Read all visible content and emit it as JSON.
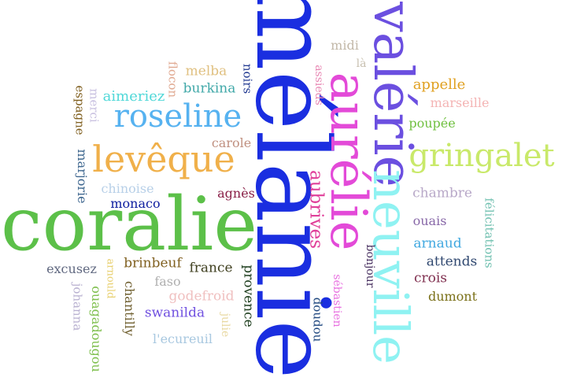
{
  "words": [
    {
      "text": "mélanie",
      "color": "#1a2ee0"
    },
    {
      "text": "coralie",
      "color": "#5cc049"
    },
    {
      "text": "valérie",
      "color": "#6b4fe0"
    },
    {
      "text": "neuville",
      "color": "#8ff2f2"
    },
    {
      "text": "aurélie",
      "color": "#e34ad8"
    },
    {
      "text": "gringalet",
      "color": "#c9e96a"
    },
    {
      "text": "roseline",
      "color": "#56b2f0"
    },
    {
      "text": "levêque",
      "color": "#f0b04a"
    },
    {
      "text": "aubrives",
      "color": "#e0409a"
    },
    {
      "text": "midi",
      "color": "#c2b8a8"
    },
    {
      "text": "là",
      "color": "#c8c0b0"
    },
    {
      "text": "assieds",
      "color": "#e888b4"
    },
    {
      "text": "appelle",
      "color": "#e0a020"
    },
    {
      "text": "marseille",
      "color": "#f4b4b4"
    },
    {
      "text": "poupée",
      "color": "#70c040"
    },
    {
      "text": "melba",
      "color": "#e0c080"
    },
    {
      "text": "flocon",
      "color": "#e0a890"
    },
    {
      "text": "noirs",
      "color": "#203890"
    },
    {
      "text": "burkina",
      "color": "#40a8a8"
    },
    {
      "text": "aimeriez",
      "color": "#50d8d8"
    },
    {
      "text": "espagne",
      "color": "#806020"
    },
    {
      "text": "merci",
      "color": "#c8c0e0"
    },
    {
      "text": "carole",
      "color": "#c09080"
    },
    {
      "text": "marjorie",
      "color": "#406890"
    },
    {
      "text": "chinoise",
      "color": "#b8d0e8"
    },
    {
      "text": "agnès",
      "color": "#8a2048"
    },
    {
      "text": "monaco",
      "color": "#1020a0"
    },
    {
      "text": "chambre",
      "color": "#b8a8c8"
    },
    {
      "text": "félicitations",
      "color": "#70c0b0"
    },
    {
      "text": "ouais",
      "color": "#8868a8"
    },
    {
      "text": "arnaud",
      "color": "#40a8e0"
    },
    {
      "text": "attends",
      "color": "#304870"
    },
    {
      "text": "bonjour",
      "color": "#483060"
    },
    {
      "text": "crois",
      "color": "#803050"
    },
    {
      "text": "dumont",
      "color": "#7a7018"
    },
    {
      "text": "sébastien",
      "color": "#e870e0"
    },
    {
      "text": "doudou",
      "color": "#204880"
    },
    {
      "text": "brinbeuf",
      "color": "#806020"
    },
    {
      "text": "france",
      "color": "#404020"
    },
    {
      "text": "provence",
      "color": "#204020"
    },
    {
      "text": "excusez",
      "color": "#606880"
    },
    {
      "text": "arnould",
      "color": "#e8d070"
    },
    {
      "text": "faso",
      "color": "#b0b0b0"
    },
    {
      "text": "johanna",
      "color": "#b8b0d0"
    },
    {
      "text": "ouagadougou",
      "color": "#80c050"
    },
    {
      "text": "chantilly",
      "color": "#706030"
    },
    {
      "text": "godefroid",
      "color": "#f0c0c0"
    },
    {
      "text": "swanilda",
      "color": "#7050e0"
    },
    {
      "text": "julie",
      "color": "#e8d8a0"
    },
    {
      "text": "l'ecureuil",
      "color": "#a8c8e0"
    }
  ]
}
